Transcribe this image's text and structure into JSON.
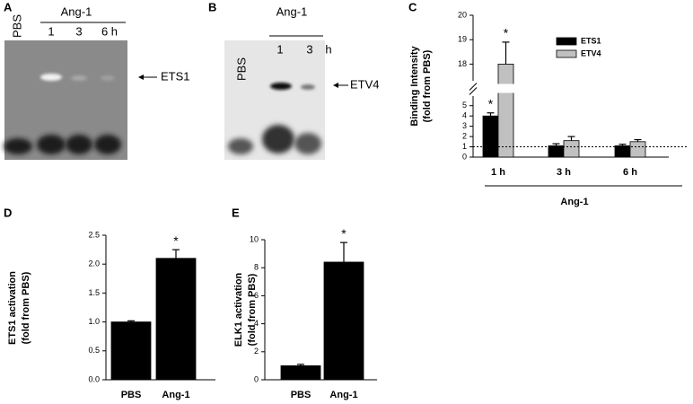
{
  "panels": [
    {
      "label": "A",
      "lanes": [
        "PBS",
        "1",
        "3",
        "6 h"
      ],
      "group": "Ang-1",
      "band": "ETS1"
    },
    {
      "label": "B",
      "lanes": [
        "PBS",
        "1",
        "3",
        "h"
      ],
      "group": "Ang-1",
      "band": "ETV4"
    }
  ],
  "chart_data": [
    {
      "panel": "C",
      "type": "bar",
      "ylabel": [
        "Binding Intensity",
        "(fold from PBS)"
      ],
      "categories": [
        "1 h",
        "3 h",
        "6 h"
      ],
      "group_label": "Ang-1",
      "series": [
        {
          "name": "ETS1",
          "color": "#000000",
          "values": [
            4.0,
            1.1,
            1.1
          ],
          "errors": [
            0.3,
            0.2,
            0.15
          ],
          "significance": [
            "*",
            null,
            null
          ]
        },
        {
          "name": "ETV4",
          "color": "#c0c0c0",
          "values": [
            18.0,
            1.6,
            1.5
          ],
          "errors": [
            0.9,
            0.4,
            0.2
          ],
          "significance": [
            "*",
            null,
            null
          ]
        }
      ],
      "ylim": [
        0,
        20
      ],
      "axis_break": [
        5.5,
        17.5
      ],
      "yticks": [
        0,
        1,
        2,
        3,
        4,
        5,
        18,
        19,
        20
      ],
      "reference_line": 1
    },
    {
      "panel": "D",
      "type": "bar",
      "ylabel": [
        "ETS1 activation",
        "(fold from PBS)"
      ],
      "categories": [
        "PBS",
        "Ang-1"
      ],
      "series": [
        {
          "color": "#000000",
          "values": [
            1.0,
            2.1
          ],
          "errors": [
            0.02,
            0.15
          ],
          "significance": [
            null,
            "*"
          ]
        }
      ],
      "ylim": [
        0,
        2.5
      ],
      "yticks": [
        {
          "value": 0,
          "label": "0.0"
        },
        {
          "value": 0.5,
          "label": "0.5"
        },
        {
          "value": 1,
          "label": "1.0"
        },
        {
          "value": 1.5,
          "label": "1.5"
        },
        {
          "value": 2,
          "label": "2.0"
        },
        {
          "value": 2.5,
          "label": "2.5"
        }
      ]
    },
    {
      "panel": "E",
      "type": "bar",
      "ylabel": [
        "ELK1 activation",
        "(fold from PBS)"
      ],
      "categories": [
        "PBS",
        "Ang-1"
      ],
      "series": [
        {
          "color": "#000000",
          "values": [
            1.0,
            8.4
          ],
          "errors": [
            0.1,
            1.4
          ],
          "significance": [
            null,
            "*"
          ]
        }
      ],
      "ylim": [
        0,
        10
      ],
      "yticks": [
        0,
        2,
        4,
        6,
        8,
        10
      ]
    }
  ]
}
